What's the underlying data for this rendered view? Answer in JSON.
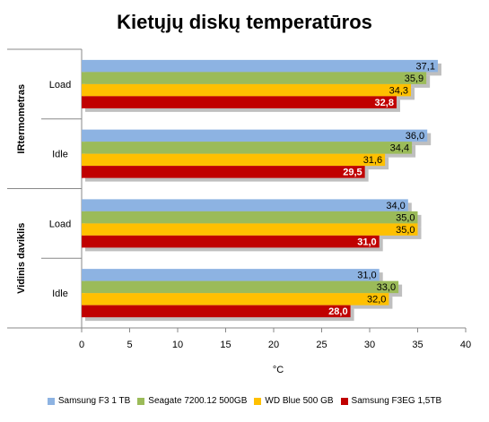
{
  "chart_data": {
    "type": "bar",
    "orientation": "horizontal",
    "title": "Kietųjų diskų temperatūros",
    "xlabel": "°C",
    "xlim": [
      0,
      40
    ],
    "xticks": [
      0,
      5,
      10,
      15,
      20,
      25,
      30,
      35,
      40
    ],
    "grid": false,
    "legend_position": "bottom",
    "groups": [
      {
        "label": "IRtermometras",
        "categories": [
          {
            "label": "Load",
            "values": [
              37.1,
              35.9,
              34.3,
              32.8
            ],
            "labels": [
              "37,1",
              "35,9",
              "34,3",
              "32,8"
            ]
          },
          {
            "label": "Idle",
            "values": [
              36.0,
              34.4,
              31.6,
              29.5
            ],
            "labels": [
              "36,0",
              "34,4",
              "31,6",
              "29,5"
            ]
          }
        ]
      },
      {
        "label": "Vidinis daviklis",
        "categories": [
          {
            "label": "Load",
            "values": [
              34.0,
              35.0,
              35.0,
              31.0
            ],
            "labels": [
              "34,0",
              "35,0",
              "35,0",
              "31,0"
            ]
          },
          {
            "label": "Idle",
            "values": [
              31.0,
              33.0,
              32.0,
              28.0
            ],
            "labels": [
              "31,0",
              "33,0",
              "32,0",
              "28,0"
            ]
          }
        ]
      }
    ],
    "series": [
      {
        "name": "Samsung F3 1 TB",
        "color": "#8DB3E2"
      },
      {
        "name": "Seagate 7200.12 500GB",
        "color": "#9BBB59"
      },
      {
        "name": "WD Blue 500 GB",
        "color": "#FFC000"
      },
      {
        "name": "Samsung F3EG 1,5TB",
        "color": "#C00000"
      }
    ]
  }
}
